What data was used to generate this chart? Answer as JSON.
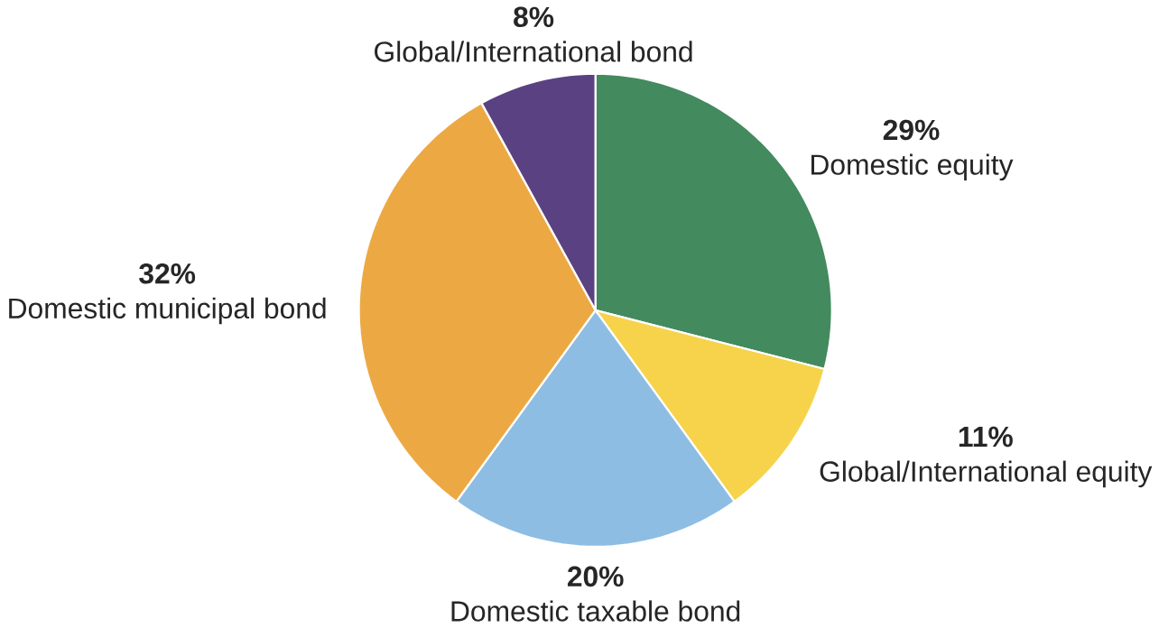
{
  "chart_data": {
    "type": "pie",
    "categories": [
      "Domestic equity",
      "Global/International equity",
      "Domestic taxable bond",
      "Domestic municipal bond",
      "Global/International bond"
    ],
    "values": [
      29,
      11,
      20,
      32,
      8
    ],
    "value_labels": [
      "29%",
      "11%",
      "20%",
      "32%",
      "8%"
    ],
    "colors": [
      "#438a5e",
      "#f6d34b",
      "#8ebde3",
      "#eca943",
      "#5a4282"
    ]
  }
}
